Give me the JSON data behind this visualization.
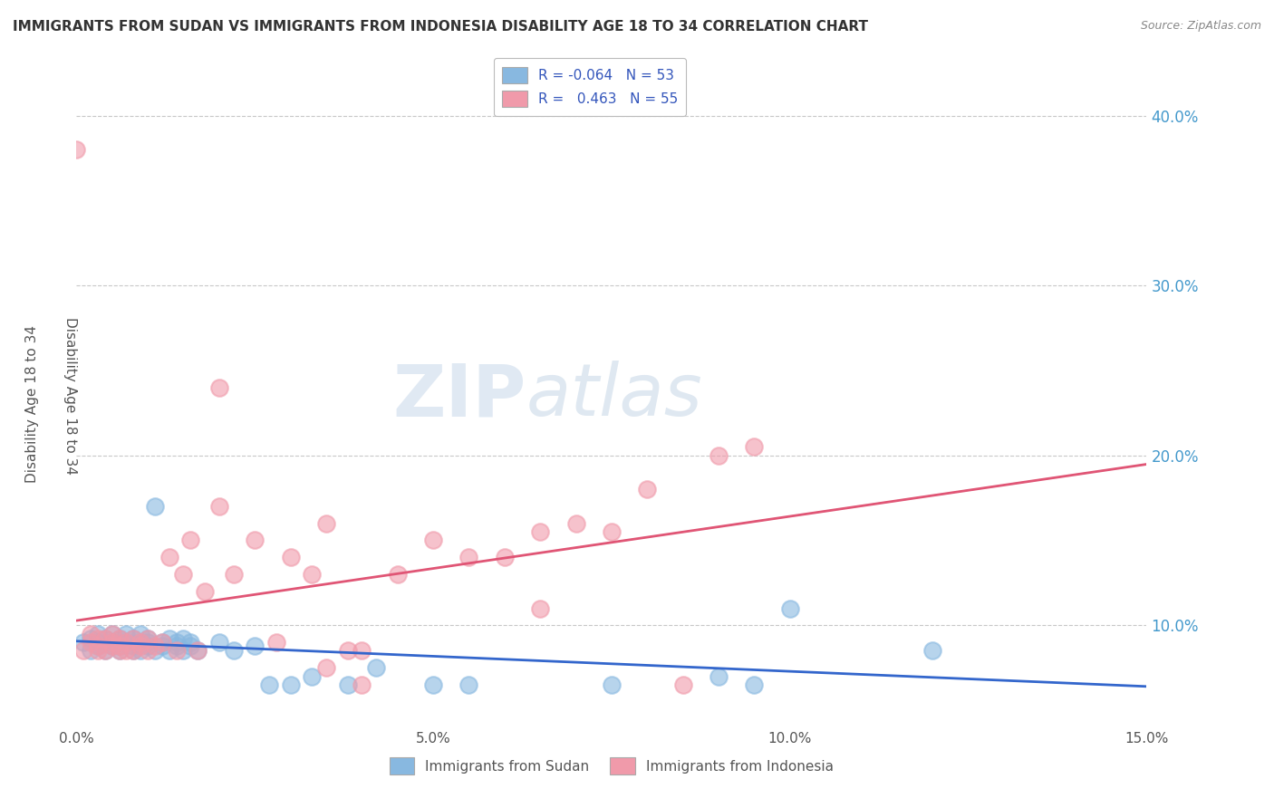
{
  "title": "IMMIGRANTS FROM SUDAN VS IMMIGRANTS FROM INDONESIA DISABILITY AGE 18 TO 34 CORRELATION CHART",
  "source": "Source: ZipAtlas.com",
  "ylabel": "Disability Age 18 to 34",
  "xlim": [
    0.0,
    0.15
  ],
  "ylim": [
    0.04,
    0.43
  ],
  "xticks": [
    0.0,
    0.05,
    0.1,
    0.15
  ],
  "xticklabels": [
    "0.0%",
    "5.0%",
    "10.0%",
    "15.0%"
  ],
  "yticks": [
    0.1,
    0.2,
    0.3,
    0.4
  ],
  "yticklabels": [
    "10.0%",
    "20.0%",
    "30.0%",
    "40.0%"
  ],
  "sudan_color": "#88b8e0",
  "indonesia_color": "#f09aaa",
  "sudan_R": -0.064,
  "sudan_N": 53,
  "indonesia_R": 0.463,
  "indonesia_N": 55,
  "sudan_line_color": "#3366cc",
  "indonesia_line_color": "#e05575",
  "legend_R_color": "#3355bb",
  "background_color": "#ffffff",
  "grid_color": "#c8c8c8",
  "sudan_x": [
    0.001,
    0.002,
    0.002,
    0.003,
    0.003,
    0.003,
    0.004,
    0.004,
    0.005,
    0.005,
    0.005,
    0.006,
    0.006,
    0.006,
    0.007,
    0.007,
    0.008,
    0.008,
    0.008,
    0.009,
    0.009,
    0.009,
    0.01,
    0.01,
    0.01,
    0.011,
    0.011,
    0.012,
    0.012,
    0.013,
    0.013,
    0.014,
    0.014,
    0.015,
    0.015,
    0.016,
    0.016,
    0.017,
    0.02,
    0.022,
    0.025,
    0.027,
    0.03,
    0.033,
    0.038,
    0.042,
    0.05,
    0.055,
    0.075,
    0.09,
    0.095,
    0.1,
    0.12
  ],
  "sudan_y": [
    0.09,
    0.085,
    0.092,
    0.088,
    0.09,
    0.095,
    0.085,
    0.092,
    0.088,
    0.09,
    0.095,
    0.085,
    0.092,
    0.088,
    0.09,
    0.095,
    0.085,
    0.092,
    0.088,
    0.09,
    0.095,
    0.085,
    0.092,
    0.088,
    0.09,
    0.085,
    0.17,
    0.088,
    0.09,
    0.085,
    0.092,
    0.088,
    0.09,
    0.085,
    0.092,
    0.088,
    0.09,
    0.085,
    0.09,
    0.085,
    0.088,
    0.065,
    0.065,
    0.07,
    0.065,
    0.075,
    0.065,
    0.065,
    0.065,
    0.07,
    0.065,
    0.11,
    0.085
  ],
  "indonesia_x": [
    0.0,
    0.001,
    0.002,
    0.002,
    0.003,
    0.003,
    0.003,
    0.004,
    0.004,
    0.005,
    0.005,
    0.005,
    0.006,
    0.006,
    0.006,
    0.007,
    0.007,
    0.008,
    0.008,
    0.009,
    0.009,
    0.01,
    0.01,
    0.011,
    0.012,
    0.013,
    0.014,
    0.015,
    0.016,
    0.017,
    0.018,
    0.02,
    0.022,
    0.025,
    0.028,
    0.03,
    0.033,
    0.035,
    0.038,
    0.04,
    0.045,
    0.05,
    0.055,
    0.06,
    0.065,
    0.07,
    0.075,
    0.08,
    0.085,
    0.09,
    0.095,
    0.065,
    0.04,
    0.035,
    0.02
  ],
  "indonesia_y": [
    0.38,
    0.085,
    0.09,
    0.095,
    0.085,
    0.092,
    0.088,
    0.085,
    0.092,
    0.088,
    0.09,
    0.095,
    0.085,
    0.092,
    0.088,
    0.085,
    0.09,
    0.085,
    0.092,
    0.088,
    0.09,
    0.085,
    0.092,
    0.088,
    0.09,
    0.14,
    0.085,
    0.13,
    0.15,
    0.085,
    0.12,
    0.17,
    0.13,
    0.15,
    0.09,
    0.14,
    0.13,
    0.16,
    0.085,
    0.085,
    0.13,
    0.15,
    0.14,
    0.14,
    0.155,
    0.16,
    0.155,
    0.18,
    0.065,
    0.2,
    0.205,
    0.11,
    0.065,
    0.075,
    0.24
  ]
}
